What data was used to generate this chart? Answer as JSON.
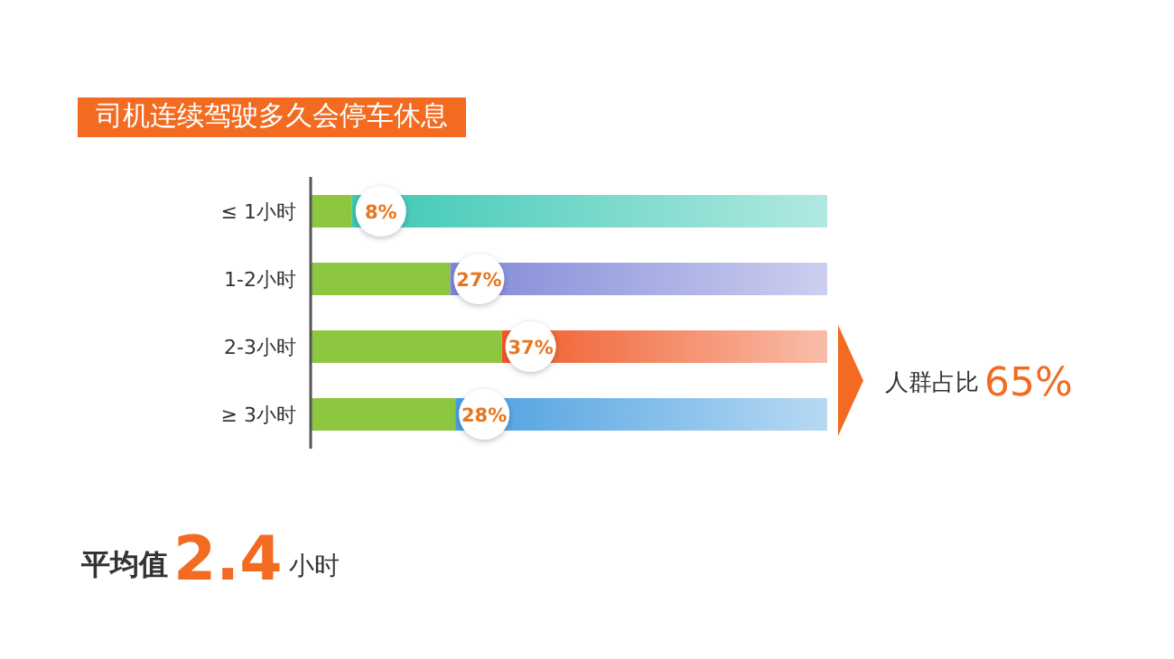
{
  "chart_data": {
    "type": "bar",
    "orientation": "horizontal",
    "stacked": true,
    "title": "司机连续驾驶多久会停车休息",
    "categories": [
      "≤ 1小时",
      "1-2小时",
      "2-3小时",
      "≥ 3小时"
    ],
    "series": [
      {
        "color": "#8dc63f",
        "values": [
          8,
          27,
          37,
          28
        ],
        "value_labels": [
          "8%",
          "27%",
          "37%",
          "28%"
        ]
      },
      {
        "colors": [
          "#3cc8b4",
          "#8088d8",
          "#f05a28",
          "#4a9fe0"
        ],
        "values": [
          92,
          73,
          63,
          72
        ]
      }
    ],
    "annotations": [
      "人群占比",
      "65%",
      "平均值",
      "2.4",
      "小时"
    ]
  }
}
